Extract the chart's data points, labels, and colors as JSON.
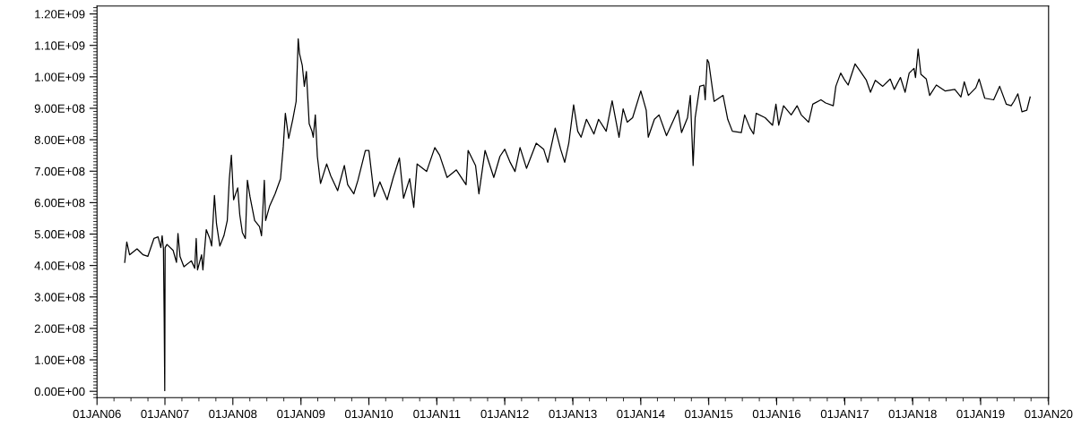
{
  "chart_data": {
    "type": "line",
    "x": [
      "2006-05-30",
      "2006-06-10",
      "2006-06-25",
      "2006-08-04",
      "2006-09-06",
      "2006-10-01",
      "2006-11-03",
      "2006-11-25",
      "2006-12-10",
      "2006-12-17",
      "2006-12-24",
      "2006-12-28",
      "2006-12-31",
      "2007-01-02",
      "2007-01-12",
      "2007-02-14",
      "2007-03-04",
      "2007-03-12",
      "2007-03-23",
      "2007-04-13",
      "2007-05-23",
      "2007-06-10",
      "2007-06-18",
      "2007-06-25",
      "2007-07-17",
      "2007-07-24",
      "2007-08-11",
      "2007-08-30",
      "2007-09-09",
      "2007-09-24",
      "2007-10-05",
      "2007-10-23",
      "2007-11-14",
      "2007-12-02",
      "2007-12-13",
      "2007-12-24",
      "2008-01-05",
      "2008-01-27",
      "2008-02-07",
      "2008-02-21",
      "2008-03-08",
      "2008-03-19",
      "2008-04-02",
      "2008-04-27",
      "2008-05-23",
      "2008-06-03",
      "2008-06-18",
      "2008-06-25",
      "2008-07-17",
      "2008-08-15",
      "2008-09-13",
      "2008-09-28",
      "2008-10-09",
      "2008-10-27",
      "2008-11-18",
      "2008-12-06",
      "2008-12-17",
      "2008-12-24",
      "2009-01-08",
      "2009-01-19",
      "2009-01-30",
      "2009-02-14",
      "2009-03-01",
      "2009-03-08",
      "2009-03-19",
      "2009-03-30",
      "2009-04-16",
      "2009-05-19",
      "2009-06-10",
      "2009-07-17",
      "2009-08-22",
      "2009-09-09",
      "2009-10-12",
      "2009-11-03",
      "2009-12-13",
      "2010-01-01",
      "2010-01-30",
      "2010-03-01",
      "2010-04-09",
      "2010-05-12",
      "2010-06-14",
      "2010-07-06",
      "2010-08-08",
      "2010-08-30",
      "2010-09-17",
      "2010-11-07",
      "2010-12-21",
      "2011-01-16",
      "2011-02-25",
      "2011-04-16",
      "2011-06-07",
      "2011-06-18",
      "2011-07-28",
      "2011-08-15",
      "2011-09-17",
      "2011-11-03",
      "2011-12-06",
      "2012-01-01",
      "2012-01-30",
      "2012-02-25",
      "2012-03-23",
      "2012-04-27",
      "2012-06-18",
      "2012-07-28",
      "2012-08-19",
      "2012-09-28",
      "2012-10-27",
      "2012-11-18",
      "2012-12-10",
      "2013-01-05",
      "2013-01-27",
      "2013-02-14",
      "2013-03-15",
      "2013-04-24",
      "2013-05-19",
      "2013-06-29",
      "2013-07-31",
      "2013-09-06",
      "2013-09-28",
      "2013-10-20",
      "2013-11-18",
      "2014-01-01",
      "2014-01-30",
      "2014-02-10",
      "2014-03-15",
      "2014-04-09",
      "2014-05-19",
      "2014-07-20",
      "2014-08-08",
      "2014-09-09",
      "2014-09-24",
      "2014-10-09",
      "2014-10-20",
      "2014-11-14",
      "2014-12-06",
      "2014-12-13",
      "2014-12-24",
      "2015-01-01",
      "2015-01-30",
      "2015-03-19",
      "2015-04-13",
      "2015-05-08",
      "2015-06-25",
      "2015-07-13",
      "2015-08-11",
      "2015-08-30",
      "2015-09-13",
      "2015-10-31",
      "2015-12-10",
      "2015-12-28",
      "2016-01-12",
      "2016-02-07",
      "2016-03-19",
      "2016-04-20",
      "2016-05-12",
      "2016-06-21",
      "2016-07-13",
      "2016-08-26",
      "2016-09-20",
      "2016-10-31",
      "2016-11-14",
      "2016-12-10",
      "2017-01-01",
      "2017-01-19",
      "2017-02-25",
      "2017-03-26",
      "2017-04-27",
      "2017-05-19",
      "2017-06-14",
      "2017-07-24",
      "2017-09-02",
      "2017-09-24",
      "2017-10-27",
      "2017-11-21",
      "2017-12-13",
      "2018-01-08",
      "2018-01-16",
      "2018-01-30",
      "2018-02-14",
      "2018-03-15",
      "2018-04-02",
      "2018-05-08",
      "2018-06-25",
      "2018-08-15",
      "2018-09-17",
      "2018-10-05",
      "2018-10-27",
      "2018-12-06",
      "2018-12-24",
      "2019-01-23",
      "2019-03-12",
      "2019-04-13",
      "2019-05-19",
      "2019-06-14",
      "2019-06-29",
      "2019-07-20",
      "2019-08-11",
      "2019-09-06",
      "2019-09-24"
    ],
    "series": [
      {
        "color": "#000000",
        "values": [
          410000000.0,
          475000000.0,
          434000000.0,
          453000000.0,
          434000000.0,
          429000000.0,
          486000000.0,
          491000000.0,
          457000000.0,
          495000000.0,
          453000000.0,
          230000000.0,
          2000000.0,
          457000000.0,
          467000000.0,
          448000000.0,
          410000000.0,
          502000000.0,
          429000000.0,
          396000000.0,
          415000000.0,
          391000000.0,
          486000000.0,
          386000000.0,
          434000000.0,
          386000000.0,
          514000000.0,
          486000000.0,
          462000000.0,
          623000000.0,
          533000000.0,
          462000000.0,
          495000000.0,
          543000000.0,
          676000000.0,
          751000000.0,
          609000000.0,
          647000000.0,
          562000000.0,
          505000000.0,
          486000000.0,
          671000000.0,
          619000000.0,
          543000000.0,
          524000000.0,
          495000000.0,
          671000000.0,
          543000000.0,
          590000000.0,
          628000000.0,
          676000000.0,
          780000000.0,
          884000000.0,
          804000000.0,
          865000000.0,
          922000000.0,
          1121000000.0,
          1074000000.0,
          1036000000.0,
          970000000.0,
          1017000000.0,
          851000000.0,
          827000000.0,
          808000000.0,
          879000000.0,
          747000000.0,
          661000000.0,
          723000000.0,
          685000000.0,
          638000000.0,
          718000000.0,
          657000000.0,
          628000000.0,
          671000000.0,
          766000000.0,
          766000000.0,
          619000000.0,
          666000000.0,
          609000000.0,
          680000000.0,
          742000000.0,
          614000000.0,
          676000000.0,
          585000000.0,
          723000000.0,
          699000000.0,
          775000000.0,
          751000000.0,
          680000000.0,
          704000000.0,
          657000000.0,
          766000000.0,
          718000000.0,
          628000000.0,
          766000000.0,
          680000000.0,
          747000000.0,
          770000000.0,
          728000000.0,
          699000000.0,
          775000000.0,
          709000000.0,
          789000000.0,
          770000000.0,
          728000000.0,
          837000000.0,
          770000000.0,
          728000000.0,
          789000000.0,
          911000000.0,
          827000000.0,
          808000000.0,
          865000000.0,
          818000000.0,
          865000000.0,
          827000000.0,
          924000000.0,
          808000000.0,
          898000000.0,
          856000000.0,
          870000000.0,
          955000000.0,
          894000000.0,
          808000000.0,
          865000000.0,
          879000000.0,
          813000000.0,
          894000000.0,
          823000000.0,
          870000000.0,
          941000000.0,
          718000000.0,
          870000000.0,
          970000000.0,
          974000000.0,
          927000000.0,
          1055000000.0,
          1046000000.0,
          922000000.0,
          941000000.0,
          865000000.0,
          827000000.0,
          823000000.0,
          879000000.0,
          837000000.0,
          818000000.0,
          884000000.0,
          870000000.0,
          846000000.0,
          913000000.0,
          846000000.0,
          908000000.0,
          879000000.0,
          908000000.0,
          879000000.0,
          856000000.0,
          913000000.0,
          927000000.0,
          917000000.0,
          908000000.0,
          970000000.0,
          1012000000.0,
          989000000.0,
          974000000.0,
          1041000000.0,
          1017000000.0,
          989000000.0,
          951000000.0,
          989000000.0,
          970000000.0,
          993000000.0,
          960000000.0,
          998000000.0,
          951000000.0,
          1012000000.0,
          1027000000.0,
          998000000.0,
          1088000000.0,
          1008000000.0,
          993000000.0,
          941000000.0,
          974000000.0,
          955000000.0,
          960000000.0,
          936000000.0,
          984000000.0,
          941000000.0,
          965000000.0,
          993000000.0,
          932000000.0,
          927000000.0,
          970000000.0,
          913000000.0,
          908000000.0,
          922000000.0,
          946000000.0,
          889000000.0,
          894000000.0,
          936000000.0
        ]
      }
    ],
    "xlim": [
      "2006-01-01",
      "2020-01-01"
    ],
    "xticks": [
      {
        "value": "2006-01-01",
        "label": "01JAN06"
      },
      {
        "value": "2007-01-01",
        "label": "01JAN07"
      },
      {
        "value": "2008-01-01",
        "label": "01JAN08"
      },
      {
        "value": "2009-01-01",
        "label": "01JAN09"
      },
      {
        "value": "2010-01-01",
        "label": "01JAN10"
      },
      {
        "value": "2011-01-01",
        "label": "01JAN11"
      },
      {
        "value": "2012-01-01",
        "label": "01JAN12"
      },
      {
        "value": "2013-01-01",
        "label": "01JAN13"
      },
      {
        "value": "2014-01-01",
        "label": "01JAN14"
      },
      {
        "value": "2015-01-01",
        "label": "01JAN15"
      },
      {
        "value": "2016-01-01",
        "label": "01JAN16"
      },
      {
        "value": "2017-01-01",
        "label": "01JAN17"
      },
      {
        "value": "2018-01-01",
        "label": "01JAN18"
      },
      {
        "value": "2019-01-01",
        "label": "01JAN19"
      },
      {
        "value": "2020-01-01",
        "label": "01JAN20"
      }
    ],
    "ylim": [
      -20000000.0,
      1225000000.0
    ],
    "yticks": [
      {
        "value": 0,
        "label": "0.00E+00"
      },
      {
        "value": 100000000.0,
        "label": "1.00E+08"
      },
      {
        "value": 200000000.0,
        "label": "2.00E+08"
      },
      {
        "value": 300000000.0,
        "label": "3.00E+08"
      },
      {
        "value": 400000000.0,
        "label": "4.00E+08"
      },
      {
        "value": 500000000.0,
        "label": "5.00E+08"
      },
      {
        "value": 600000000.0,
        "label": "6.00E+08"
      },
      {
        "value": 700000000.0,
        "label": "7.00E+08"
      },
      {
        "value": 800000000.0,
        "label": "8.00E+08"
      },
      {
        "value": 900000000.0,
        "label": "9.00E+08"
      },
      {
        "value": 1000000000.0,
        "label": "1.00E+09"
      },
      {
        "value": 1100000000.0,
        "label": "1.10E+09"
      },
      {
        "value": 1200000000.0,
        "label": "1.20E+09"
      }
    ],
    "grid": false
  }
}
